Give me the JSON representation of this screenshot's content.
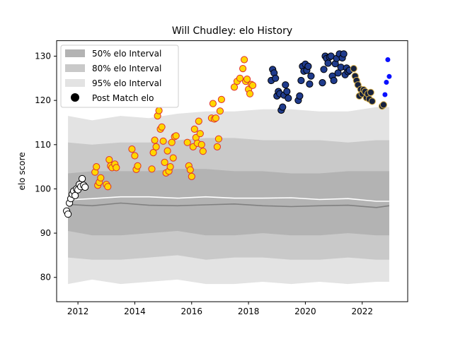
{
  "chart_data": {
    "type": "scatter",
    "title": "Will Chudley: elo History",
    "xlabel": "",
    "ylabel": "elo score",
    "xlim": [
      2011.25,
      2023.6
    ],
    "ylim": [
      74.5,
      133.5
    ],
    "x_ticks": [
      2012,
      2014,
      2016,
      2018,
      2020,
      2022
    ],
    "y_ticks": [
      80,
      90,
      100,
      110,
      120,
      130
    ],
    "grid": false,
    "legend": {
      "placement": "top-left",
      "entries": [
        {
          "label": "50% elo Interval",
          "color": "#b3b3b3"
        },
        {
          "label": "80% elo Interval",
          "color": "#c9c9c9"
        },
        {
          "label": "95% elo Interval",
          "color": "#e3e3e3"
        },
        {
          "label": "Post Match elo",
          "color": "#000000"
        }
      ]
    },
    "bands": {
      "x": [
        2011.65,
        2012.5,
        2013.5,
        2014.5,
        2015.5,
        2016.5,
        2017.5,
        2018.5,
        2019.5,
        2020.5,
        2021.5,
        2022.5,
        2022.95
      ],
      "b95_upper": [
        116.5,
        115.5,
        116.5,
        116,
        117,
        117.5,
        117.5,
        118,
        118,
        117.5,
        117.5,
        118.5,
        118.5
      ],
      "b95_lower": [
        78.5,
        79.5,
        78.5,
        79,
        79.5,
        78.5,
        78.5,
        79,
        78.5,
        79,
        78.5,
        79,
        79
      ],
      "b80_upper": [
        110.5,
        110,
        110.5,
        110.5,
        111,
        111.5,
        111.5,
        111,
        111,
        111,
        110.5,
        111,
        111
      ],
      "b80_lower": [
        84.5,
        84,
        84,
        84.5,
        85,
        84,
        84.5,
        84.5,
        84,
        84,
        84.5,
        84,
        84
      ],
      "b50_upper": [
        103.5,
        104,
        104,
        104,
        104.5,
        104.5,
        104,
        104,
        103.5,
        103.5,
        104,
        104,
        104
      ],
      "b50_lower": [
        90.5,
        89.5,
        89.5,
        90,
        90.5,
        89.5,
        89.5,
        90,
        89.5,
        89.5,
        90,
        89.5,
        89.5
      ],
      "mean_line": [
        97.5,
        97.8,
        98.2,
        98.2,
        97.9,
        98.2,
        97.9,
        97.9,
        98,
        97.6,
        97.8,
        97.2,
        97.2
      ],
      "median_line": [
        96.5,
        96.2,
        96.8,
        96.3,
        96.2,
        96.4,
        96.6,
        96.2,
        96,
        96.2,
        96.3,
        95.8,
        96.2
      ]
    },
    "series": [
      {
        "fill": "#ffffff",
        "edge": "#000000",
        "x": [
          2011.6,
          2011.65,
          2011.7,
          2011.75,
          2011.8,
          2011.85,
          2011.9,
          2011.95,
          2012.0,
          2012.05,
          2012.1,
          2012.15,
          2012.2,
          2012.25
        ],
        "y": [
          95,
          94.3,
          96.8,
          97.8,
          98.8,
          99.5,
          98.5,
          100,
          99.8,
          101,
          100.5,
          102.3,
          100.8,
          100.4
        ]
      },
      {
        "fill": "#ffd700",
        "edge": "#e03030",
        "x": [
          2012.6,
          2012.65,
          2012.7,
          2012.75,
          2012.8,
          2013.0,
          2013.05,
          2013.1,
          2013.15,
          2013.2,
          2013.3,
          2013.35,
          2013.9,
          2014.0,
          2014.05,
          2014.1,
          2014.6,
          2014.65,
          2014.7,
          2014.75,
          2014.8,
          2014.85,
          2014.9,
          2014.95,
          2015.0,
          2015.05,
          2015.1,
          2015.15,
          2015.2,
          2015.25,
          2015.3,
          2015.35,
          2015.4,
          2015.45,
          2015.85,
          2015.9,
          2015.95,
          2016.0,
          2016.05,
          2016.1,
          2016.15,
          2016.2,
          2016.25,
          2016.3,
          2016.35,
          2016.4,
          2016.7,
          2016.75,
          2016.8,
          2016.85,
          2016.9,
          2016.95,
          2017.0,
          2017.05,
          2017.5,
          2017.6,
          2017.7,
          2017.8,
          2017.85,
          2017.9,
          2017.95,
          2018.0,
          2018.05,
          2018.1,
          2018.15
        ],
        "y": [
          103.8,
          105,
          100.8,
          101.5,
          102.5,
          101,
          100.5,
          106.6,
          105.2,
          104.8,
          105.6,
          104.8,
          109,
          107.5,
          104.4,
          105.2,
          104.5,
          108.2,
          111,
          109.5,
          116.5,
          117.7,
          113.5,
          114,
          110.8,
          106,
          103.6,
          108.6,
          104,
          105,
          110.5,
          107,
          111.8,
          112,
          110.5,
          105.2,
          104.3,
          102.8,
          109.5,
          113.5,
          111.6,
          110.3,
          115.3,
          112.5,
          110,
          108.5,
          116,
          119.3,
          115.8,
          116,
          109.5,
          111.3,
          117.6,
          120.2,
          123,
          124.3,
          125,
          127.2,
          129.2,
          124.3,
          124.8,
          122.5,
          121.5,
          123.6,
          123.4
        ]
      },
      {
        "fill": "#1f3b8c",
        "edge": "#000000",
        "x": [
          2018.8,
          2018.85,
          2018.9,
          2018.95,
          2019.0,
          2019.05,
          2019.1,
          2019.15,
          2019.2,
          2019.25,
          2019.3,
          2019.35,
          2019.4,
          2019.75,
          2019.8,
          2019.85,
          2019.9,
          2019.95,
          2020.0,
          2020.05,
          2020.1,
          2020.15,
          2020.2,
          2020.6,
          2020.65,
          2020.7,
          2020.75,
          2020.8,
          2020.85,
          2020.9,
          2020.95,
          2021.0,
          2021.05,
          2021.1,
          2021.15,
          2021.2,
          2021.25,
          2021.3,
          2021.35,
          2021.4,
          2021.45,
          2021.5,
          2021.55
        ],
        "y": [
          124.5,
          127,
          126.2,
          125,
          121,
          122,
          121.5,
          117.8,
          118.5,
          121.2,
          123.5,
          122,
          120.5,
          120,
          121,
          124.5,
          127.7,
          126.6,
          128.2,
          126.8,
          127.7,
          123.7,
          125.5,
          124,
          127,
          130,
          129.5,
          128.4,
          129.8,
          130,
          125.5,
          124.5,
          128.3,
          129.5,
          126.2,
          130.5,
          127.5,
          129.6,
          130.5,
          125.8,
          127.3,
          126.5,
          126.8
        ]
      },
      {
        "fill": "#16213e",
        "edge": "#d9b14a",
        "x": [
          2021.7,
          2021.75,
          2021.8,
          2021.85,
          2021.9,
          2021.95,
          2022.0,
          2022.05,
          2022.1,
          2022.15,
          2022.2,
          2022.25,
          2022.3,
          2022.35,
          2022.7,
          2022.75
        ],
        "y": [
          127.2,
          125.5,
          124.5,
          123.5,
          121,
          122.5,
          121.5,
          122.4,
          122,
          120.6,
          121.5,
          120.3,
          121.8,
          119.8,
          118.7,
          119
        ]
      },
      {
        "fill": "#0a10ff",
        "edge": "#0a10ff",
        "size": "small",
        "x": [
          2022.8,
          2022.85,
          2022.9,
          2022.95
        ],
        "y": [
          121.3,
          124.1,
          129.2,
          125.4
        ]
      }
    ]
  }
}
